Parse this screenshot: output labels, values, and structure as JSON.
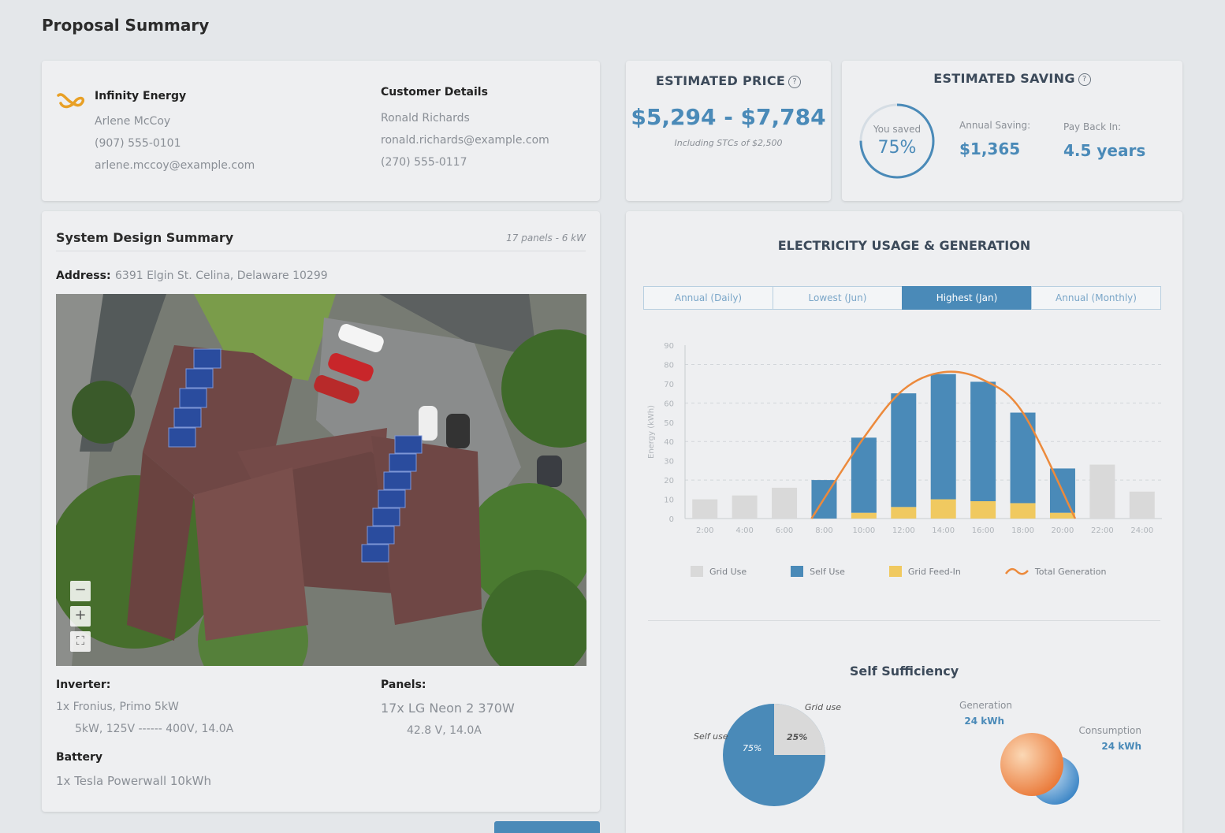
{
  "page": {
    "title": "Proposal Summary"
  },
  "company": {
    "name": "Infinity Energy",
    "contact_name": "Arlene McCoy",
    "phone": "(907) 555-0101",
    "email": "arlene.mccoy@example.com"
  },
  "customer": {
    "section_title": "Customer Details",
    "name": "Ronald Richards",
    "email": "ronald.richards@example.com",
    "phone": "(270) 555-0117"
  },
  "price": {
    "title": "ESTIMATED PRICE",
    "range": "$5,294 - $7,784",
    "note": "Including STCs of $2,500"
  },
  "saving": {
    "title": "ESTIMATED SAVING",
    "ring_label": "You saved",
    "ring_value": "75%",
    "ring_fraction": 0.75,
    "annual_label": "Annual Saving:",
    "annual_value": "$1,365",
    "payback_label": "Pay Back In:",
    "payback_value": "4.5 years"
  },
  "design": {
    "title": "System Design Summary",
    "meta": "17 panels - 6 kW",
    "address_label": "Address:",
    "address": "6391 Elgin St. Celina, Delaware 10299",
    "inverter_label": "Inverter:",
    "inverter_line1": "1x Fronius, Primo 5kW",
    "inverter_line2": "5kW, 125V ------ 400V, 14.0A",
    "panels_label": "Panels:",
    "panels_line1": "17x LG Neon 2 370W",
    "panels_line2": "42.8 V,  14.0A",
    "battery_label": "Battery",
    "battery_line1": "1x Tesla Powerwall 10kWh",
    "map_controls": {
      "zoom_out": "−",
      "zoom_in": "+",
      "fullscreen": "⛶"
    }
  },
  "chart_section": {
    "title": "ELECTRICITY USAGE & GENERATION",
    "tabs": [
      "Annual (Daily)",
      "Lowest (Jun)",
      "Highest (Jan)",
      "Annual (Monthly)"
    ],
    "active_tab": 2
  },
  "chart_data": {
    "type": "bar",
    "ylabel": "Energy (kWh)",
    "ylim": [
      0,
      90
    ],
    "yticks": [
      0,
      10,
      20,
      30,
      40,
      50,
      60,
      70,
      80,
      90
    ],
    "categories": [
      "2:00",
      "4:00",
      "6:00",
      "8:00",
      "10:00",
      "12:00",
      "14:00",
      "16:00",
      "18:00",
      "20:00",
      "22:00",
      "24:00"
    ],
    "series": [
      {
        "name": "Grid Use",
        "color": "#d9d9d9",
        "values": [
          10,
          12,
          16,
          0,
          0,
          0,
          0,
          0,
          0,
          0,
          28,
          14
        ]
      },
      {
        "name": "Self Use",
        "color": "#4a8ab8",
        "values": [
          0,
          0,
          0,
          20,
          39,
          59,
          65,
          62,
          47,
          23,
          0,
          0
        ]
      },
      {
        "name": "Grid Feed-In",
        "color": "#f0c960",
        "values": [
          0,
          0,
          0,
          0,
          3,
          6,
          10,
          9,
          8,
          3,
          0,
          0
        ]
      },
      {
        "name": "Total Generation",
        "type": "line",
        "color": "#ec8a3c",
        "values": [
          0,
          0,
          0,
          0,
          42,
          67,
          76,
          72,
          55,
          0,
          0,
          0
        ]
      }
    ],
    "grid": true,
    "legend_position": "bottom"
  },
  "self_sufficiency": {
    "title": "Self Sufficiency",
    "pie": [
      {
        "label": "Self use",
        "value": 75,
        "display": "75%",
        "color": "#4a8ab8"
      },
      {
        "label": "Grid use",
        "value": 25,
        "display": "25%",
        "color": "#d9d9d9"
      }
    ],
    "venn": {
      "generation_label": "Generation",
      "generation_value": "24 kWh",
      "consumption_label": "Consumption",
      "consumption_value": "24 kWh"
    }
  }
}
